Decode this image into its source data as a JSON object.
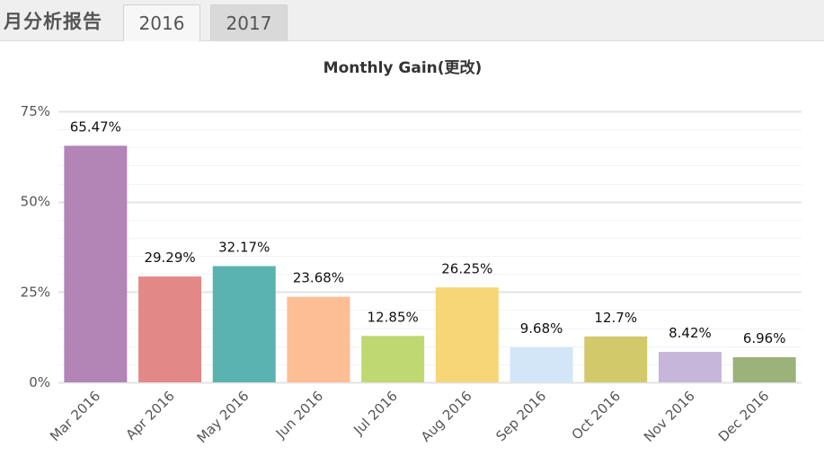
{
  "header": {
    "app_title": "月分析报告",
    "tabs": [
      {
        "label": "2016",
        "active": true
      },
      {
        "label": "2017",
        "active": false
      }
    ]
  },
  "chart_data": {
    "type": "bar",
    "title": "Monthly Gain(更改)",
    "xlabel": "",
    "ylabel": "",
    "ylim": [
      0,
      75
    ],
    "yticks": [
      0,
      25,
      50,
      75
    ],
    "ytick_labels": [
      "0%",
      "25%",
      "50%",
      "75%"
    ],
    "grid": true,
    "categories": [
      "Mar 2016",
      "Apr 2016",
      "May 2016",
      "Jun 2016",
      "Jul 2016",
      "Aug 2016",
      "Sep 2016",
      "Oct 2016",
      "Nov 2016",
      "Dec 2016"
    ],
    "values": [
      65.47,
      29.29,
      32.17,
      23.68,
      12.85,
      26.25,
      9.68,
      12.7,
      8.42,
      6.96
    ],
    "data_labels": [
      "65.47%",
      "29.29%",
      "32.17%",
      "23.68%",
      "12.85%",
      "26.25%",
      "9.68%",
      "12.7%",
      "8.42%",
      "6.96%"
    ],
    "colors": [
      "#b285b6",
      "#e28886",
      "#5bb3b1",
      "#fdbd95",
      "#bfd872",
      "#f6d676",
      "#d2e6f8",
      "#d2c96b",
      "#c6b6d9",
      "#9bb27b"
    ]
  }
}
